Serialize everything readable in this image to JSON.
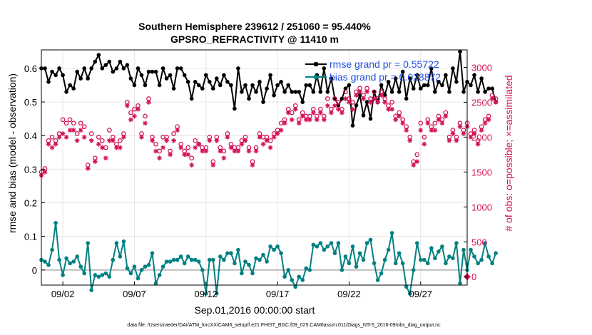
{
  "chart_data": {
    "type": "line",
    "title": "Southern Hemisphere 239612 / 251060 = 95.440%",
    "subtitle": "GPSRO_REFRACTIVITY @ 11410 m",
    "xlabel": "Sep.01,2016 00:00:00 start",
    "ylabel": "rmse and bias (model - observation)",
    "y2label": "# of obs: o=possible; ×=assimilated",
    "xlim": [
      0.5,
      30.25
    ],
    "ylim": [
      -0.045,
      0.655
    ],
    "y2lim": [
      -120,
      3250
    ],
    "x_ticks": [
      {
        "value": 2,
        "label": "09/02"
      },
      {
        "value": 7,
        "label": "09/07"
      },
      {
        "value": 12,
        "label": "09/12"
      },
      {
        "value": 17,
        "label": "09/17"
      },
      {
        "value": 22,
        "label": "09/22"
      },
      {
        "value": 27,
        "label": "09/27"
      }
    ],
    "y_ticks": [
      {
        "value": 0,
        "label": "0"
      },
      {
        "value": 0.1,
        "label": "0.1"
      },
      {
        "value": 0.2,
        "label": "0.2"
      },
      {
        "value": 0.3,
        "label": "0.3"
      },
      {
        "value": 0.4,
        "label": "0.4"
      },
      {
        "value": 0.5,
        "label": "0.5"
      },
      {
        "value": 0.6,
        "label": "0.6"
      }
    ],
    "y2_ticks": [
      {
        "value": 0,
        "label": "0"
      },
      {
        "value": 500,
        "label": "500"
      },
      {
        "value": 1000,
        "label": "1000"
      },
      {
        "value": 1500,
        "label": "1500"
      },
      {
        "value": 2000,
        "label": "2000"
      },
      {
        "value": 2500,
        "label": "2500"
      },
      {
        "value": 3000,
        "label": "3000"
      }
    ],
    "grid": true,
    "legend_position": "top-right",
    "x_start": 0.5,
    "x_step": 0.25,
    "series": [
      {
        "name": "rmse grand pr = 0.55722",
        "axis": "left",
        "color": "#000000",
        "marker": "filled-circle",
        "values": [
          0.6,
          0.6,
          0.56,
          0.59,
          0.58,
          0.6,
          0.58,
          0.53,
          0.55,
          0.54,
          0.59,
          0.57,
          0.6,
          0.57,
          0.6,
          0.62,
          0.64,
          0.6,
          0.61,
          0.62,
          0.59,
          0.6,
          0.62,
          0.6,
          0.61,
          0.57,
          0.55,
          0.6,
          0.58,
          0.55,
          0.59,
          0.59,
          0.59,
          0.55,
          0.6,
          0.57,
          0.58,
          0.54,
          0.6,
          0.6,
          0.58,
          0.56,
          0.51,
          0.56,
          0.55,
          0.54,
          0.58,
          0.56,
          0.54,
          0.57,
          0.55,
          0.58,
          0.56,
          0.55,
          0.48,
          0.6,
          0.53,
          0.55,
          0.51,
          0.55,
          0.53,
          0.56,
          0.5,
          0.54,
          0.58,
          0.52,
          0.55,
          0.56,
          0.53,
          0.55,
          0.53,
          0.53,
          0.53,
          0.5,
          0.55,
          0.55,
          0.53,
          0.58,
          0.53,
          0.6,
          0.53,
          0.57,
          0.51,
          0.49,
          0.51,
          0.54,
          0.55,
          0.43,
          0.49,
          0.52,
          0.46,
          0.5,
          0.45,
          0.53,
          0.5,
          0.55,
          0.52,
          0.56,
          0.53,
          0.57,
          0.53,
          0.59,
          0.51,
          0.57,
          0.54,
          0.58,
          0.54,
          0.55,
          0.55,
          0.6,
          0.53,
          0.56,
          0.55,
          0.58,
          0.53,
          0.6,
          0.56,
          0.65,
          0.53,
          0.56,
          0.55,
          0.58,
          0.53,
          0.57,
          0.53,
          0.54,
          0.54,
          0.5
        ]
      },
      {
        "name": "bias grand pr = 0.028872",
        "axis": "left",
        "color": "#008080",
        "marker": "filled-circle",
        "values": [
          0.03,
          0.025,
          0.015,
          0.06,
          0.14,
          0.03,
          -0.015,
          0.035,
          0.02,
          0.025,
          0.04,
          0.01,
          -0.01,
          0.08,
          -0.06,
          -0.015,
          -0.02,
          -0.015,
          -0.01,
          -0.02,
          0.03,
          0.08,
          0.04,
          0.085,
          0.005,
          -0.01,
          0.01,
          -0.025,
          0.0,
          0.01,
          0.015,
          0.05,
          -0.04,
          -0.015,
          0.01,
          0.025,
          0.025,
          0.03,
          0.03,
          0.04,
          0.02,
          0.04,
          0.03,
          0.03,
          0.025,
          0.0,
          -0.07,
          0.03,
          0.03,
          -0.07,
          0.04,
          0.03,
          0.05,
          0.05,
          0.02,
          0.06,
          -0.01,
          0.025,
          0.015,
          -0.01,
          0.035,
          0.03,
          0.045,
          0.025,
          0.07,
          0.06,
          0.07,
          0.05,
          -0.02,
          0.0,
          -0.03,
          -0.05,
          -0.02,
          -0.03,
          0.005,
          0.0,
          0.075,
          0.07,
          0.08,
          0.06,
          0.07,
          0.08,
          0.05,
          0.08,
          0.0,
          0.04,
          0.02,
          0.07,
          0.01,
          0.05,
          0.03,
          0.08,
          0.09,
          0.02,
          -0.03,
          -0.01,
          0.03,
          0.06,
          0.11,
          0.02,
          0.05,
          0.02,
          -0.05,
          -0.07,
          0.0,
          0.08,
          0.03,
          0.03,
          0.02,
          0.065,
          0.035,
          0.055,
          0.07,
          0.02,
          0.04,
          0.035,
          0.08,
          -0.04,
          0.06,
          0.0,
          0.06,
          0.04,
          0.02,
          0.03,
          0.08,
          0.04,
          0.02,
          0.05
        ]
      },
      {
        "name": "possible obs",
        "axis": "right",
        "color": "#d4145a",
        "marker": "open-circle",
        "values": [
          1500,
          1550,
          1950,
          2000,
          1950,
          2050,
          2250,
          2200,
          2250,
          2200,
          2050,
          2200,
          2150,
          1600,
          2050,
          1700,
          2000,
          1950,
          1850,
          2100,
          2000,
          1900,
          1950,
          2050,
          2500,
          2350,
          2400,
          2450,
          2050,
          2300,
          2550,
          2000,
          1900,
          1800,
          2000,
          2000,
          1800,
          2050,
          2150,
          1900,
          1800,
          1850,
          1700,
          1950,
          1900,
          1850,
          1850,
          2000,
          1650,
          2000,
          1850,
          1800,
          2050,
          1900,
          1850,
          1850,
          1950,
          2000,
          1850,
          1650,
          1850,
          2050,
          2000,
          2000,
          1950,
          2050,
          2100,
          2200,
          2250,
          2400,
          2350,
          2450,
          2250,
          2350,
          2300,
          2300,
          2400,
          2300,
          2400,
          2300,
          2550,
          2400,
          2550,
          2500,
          2400,
          2650,
          2550,
          2500,
          2650,
          2700,
          2600,
          2700,
          2550,
          2650,
          2550,
          2650,
          2550,
          2450,
          2500,
          2300,
          2350,
          2250,
          2150,
          2000,
          1650,
          1750,
          2200,
          2000,
          2250,
          2150,
          2200,
          2300,
          2250,
          2350,
          2000,
          2100,
          2000,
          2200,
          2100,
          2200,
          2050,
          2100,
          1950,
          2150,
          2250,
          2300,
          2600,
          2550
        ]
      },
      {
        "name": "assimilated obs",
        "axis": "right",
        "color": "#d4145a",
        "marker": "asterisk",
        "values": [
          1450,
          1500,
          1900,
          1850,
          1900,
          2000,
          2050,
          2000,
          2100,
          2100,
          1950,
          2100,
          2000,
          1550,
          1950,
          1650,
          1900,
          1850,
          1700,
          1950,
          1950,
          1850,
          1850,
          2000,
          2450,
          2250,
          2300,
          2400,
          2000,
          2200,
          2500,
          1950,
          1800,
          1700,
          1850,
          1950,
          1750,
          1950,
          2100,
          1850,
          1750,
          1750,
          1600,
          1850,
          1900,
          1800,
          1800,
          1950,
          1600,
          1950,
          1800,
          1700,
          2000,
          1850,
          1800,
          1800,
          1900,
          1950,
          1800,
          1600,
          1800,
          2000,
          1900,
          1950,
          1850,
          2000,
          2050,
          2100,
          2200,
          2350,
          2250,
          2400,
          2200,
          2300,
          2250,
          2250,
          2350,
          2250,
          2350,
          2250,
          2450,
          2350,
          2450,
          2400,
          2350,
          2550,
          2500,
          2400,
          2600,
          2650,
          2550,
          2650,
          2500,
          2550,
          2500,
          2600,
          2500,
          2400,
          2400,
          2250,
          2300,
          2200,
          2100,
          1950,
          1600,
          1650,
          2100,
          1900,
          2200,
          2100,
          2100,
          2250,
          2200,
          2300,
          1950,
          2050,
          1950,
          2150,
          2050,
          2150,
          2000,
          2050,
          1900,
          2100,
          2200,
          2250,
          2550,
          2500
        ]
      }
    ]
  },
  "footer": {
    "data_file": "data file: /Users/raeder/DAI/ATM_forcXX/CAM6_setup/f.e21.FHIST_BGC.f09_025.CAM6assim.011/Diags_NTrS_2016-09/obs_diag_output.nc"
  }
}
